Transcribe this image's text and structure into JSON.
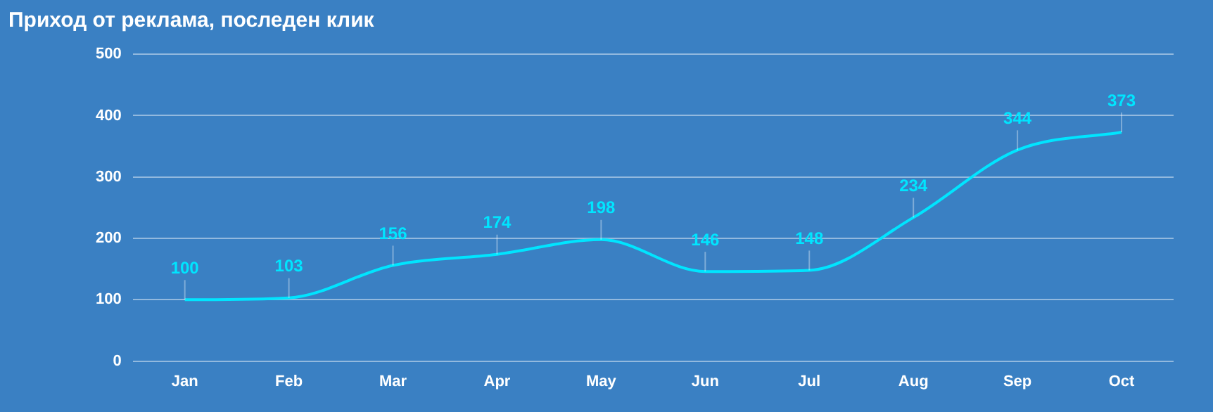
{
  "chart_data": {
    "type": "line",
    "title": "Приход от реклама, последен клик",
    "categories": [
      "Jan",
      "Feb",
      "Mar",
      "Apr",
      "May",
      "Jun",
      "Jul",
      "Aug",
      "Sep",
      "Oct"
    ],
    "series": [
      {
        "color": "#00e5ff",
        "values": [
          100,
          103,
          156,
          174,
          198,
          146,
          148,
          234,
          344,
          373
        ]
      }
    ],
    "ylim": [
      0,
      500
    ],
    "yticks": [
      0,
      100,
      200,
      300,
      400,
      500
    ],
    "grid": "y",
    "legend": false,
    "marker": "none",
    "data_labels": true
  }
}
